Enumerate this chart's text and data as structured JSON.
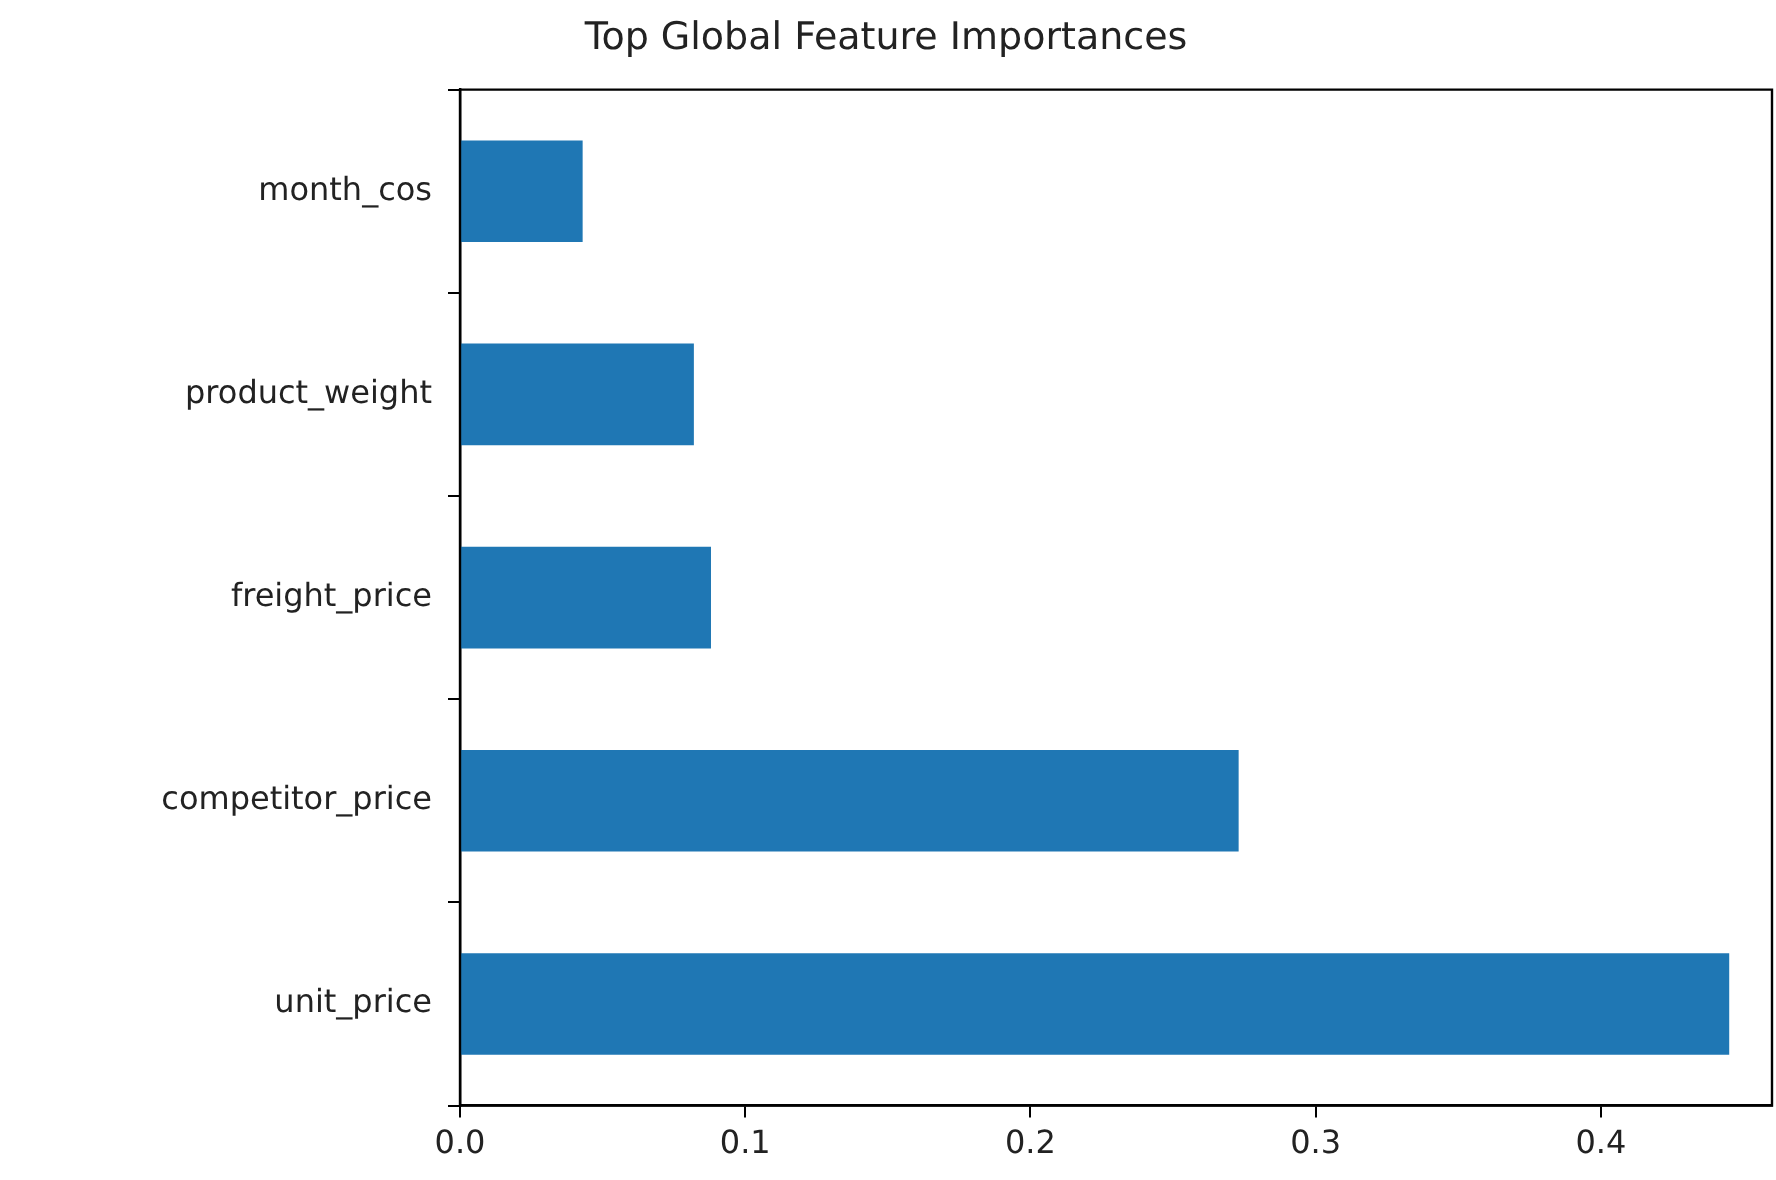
{
  "chart_data": {
    "type": "bar",
    "orientation": "horizontal",
    "title": "Top Global Feature Importances",
    "categories": [
      "month_cos",
      "product_weight",
      "freight_price",
      "competitor_price",
      "unit_price"
    ],
    "values": [
      0.043,
      0.082,
      0.088,
      0.273,
      0.445
    ],
    "color": "#1f77b4",
    "xlim": [
      0,
      0.46
    ],
    "xticks": [
      {
        "value": 0,
        "label": "0.0"
      },
      {
        "value": 0.1,
        "label": "0.1"
      },
      {
        "value": 0.2,
        "label": "0.2"
      },
      {
        "value": 0.3,
        "label": "0.3"
      },
      {
        "value": 0.4,
        "label": "0.4"
      }
    ],
    "grid": false,
    "legend": false
  }
}
